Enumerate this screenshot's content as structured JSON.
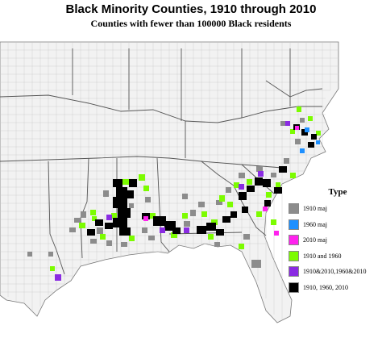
{
  "title": "Black Minority Counties, 1910 through 2010",
  "subtitle": "Counties with fewer than 100000 Black residents",
  "legend": {
    "title": "Type",
    "items": [
      {
        "label": "1910 maj",
        "color": "#8c8c8c"
      },
      {
        "label": "1960 maj",
        "color": "#1e90ff"
      },
      {
        "label": "2010 maj",
        "color": "#ff22ee"
      },
      {
        "label": "1910 and 1960",
        "color": "#7cfc00"
      },
      {
        "label": "1910&2010,1960&2010",
        "color": "#8a2be2"
      },
      {
        "label": "1910, 1960, 2010",
        "color": "#000000"
      }
    ]
  },
  "colors": {
    "background": "#ffffff",
    "land": "#f2f2f2",
    "county_lines": "#c8c8c8",
    "state_lines": "#555555"
  }
}
